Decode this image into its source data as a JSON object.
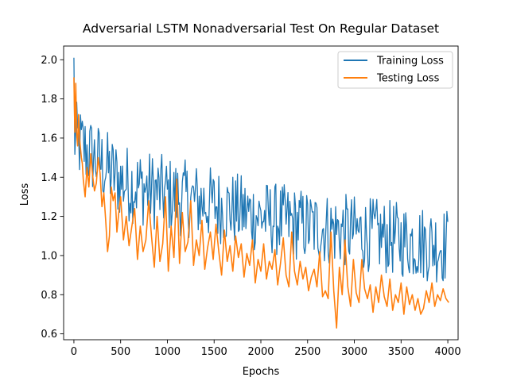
{
  "chart_data": {
    "type": "line",
    "title": "Adversarial LSTM Nonadversarial Test On Regular Dataset",
    "xlabel": "Epochs",
    "ylabel": "Loss",
    "xlim": [
      -110,
      4110
    ],
    "ylim": [
      0.57,
      2.07
    ],
    "xticks": [
      0,
      500,
      1000,
      1500,
      2000,
      2500,
      3000,
      3500,
      4000
    ],
    "yticks": [
      0.6,
      0.8,
      1.0,
      1.2,
      1.4,
      1.6,
      1.8,
      2.0
    ],
    "ytick_labels": [
      "0.6",
      "0.8",
      "1.0",
      "1.2",
      "1.4",
      "1.6",
      "1.8",
      "2.0"
    ],
    "grid": false,
    "legend_position": "upper right",
    "series": [
      {
        "name": "Training Loss",
        "color": "#1f77b4",
        "style": "noisy-band",
        "x_range": [
          0,
          4000
        ],
        "step": 10,
        "start_value": 2.01,
        "trend": [
          [
            0,
            1.6
          ],
          [
            100,
            1.55
          ],
          [
            500,
            1.38
          ],
          [
            1000,
            1.31
          ],
          [
            1500,
            1.26
          ],
          [
            2000,
            1.2
          ],
          [
            2500,
            1.15
          ],
          [
            3000,
            1.12
          ],
          [
            3500,
            1.08
          ],
          [
            4000,
            1.05
          ]
        ],
        "amplitude": [
          [
            0,
            0.2
          ],
          [
            1000,
            0.2
          ],
          [
            2000,
            0.19
          ],
          [
            3000,
            0.19
          ],
          [
            4000,
            0.2
          ]
        ]
      },
      {
        "name": "Testing Loss",
        "color": "#ff7f0e",
        "style": "line",
        "x": [
          0,
          10,
          20,
          30,
          40,
          50,
          60,
          70,
          80,
          90,
          100,
          120,
          140,
          160,
          180,
          200,
          220,
          240,
          260,
          280,
          300,
          320,
          340,
          360,
          380,
          400,
          420,
          440,
          460,
          480,
          500,
          530,
          560,
          590,
          620,
          650,
          680,
          710,
          740,
          770,
          800,
          830,
          860,
          890,
          920,
          950,
          980,
          1010,
          1040,
          1070,
          1100,
          1130,
          1160,
          1190,
          1220,
          1250,
          1280,
          1310,
          1340,
          1370,
          1400,
          1430,
          1460,
          1490,
          1520,
          1550,
          1580,
          1610,
          1640,
          1670,
          1700,
          1730,
          1760,
          1790,
          1820,
          1850,
          1880,
          1910,
          1940,
          1970,
          2000,
          2030,
          2060,
          2090,
          2120,
          2150,
          2180,
          2210,
          2240,
          2270,
          2300,
          2330,
          2360,
          2390,
          2420,
          2450,
          2480,
          2510,
          2540,
          2570,
          2600,
          2630,
          2660,
          2690,
          2720,
          2750,
          2780,
          2810,
          2840,
          2870,
          2900,
          2930,
          2960,
          2990,
          3020,
          3050,
          3080,
          3110,
          3140,
          3170,
          3200,
          3230,
          3260,
          3290,
          3320,
          3350,
          3380,
          3410,
          3440,
          3470,
          3500,
          3530,
          3560,
          3590,
          3620,
          3650,
          3680,
          3710,
          3740,
          3770,
          3800,
          3830,
          3860,
          3890,
          3920,
          3950,
          3980,
          4010
        ],
        "y": [
          1.91,
          1.63,
          1.88,
          1.62,
          1.56,
          1.72,
          1.6,
          1.55,
          1.5,
          1.47,
          1.39,
          1.3,
          1.45,
          1.35,
          1.52,
          1.41,
          1.33,
          1.37,
          1.5,
          1.42,
          1.25,
          1.32,
          1.18,
          1.02,
          1.1,
          1.35,
          1.28,
          1.32,
          1.12,
          1.22,
          1.3,
          1.08,
          1.2,
          1.05,
          1.15,
          1.24,
          0.98,
          1.15,
          1.02,
          1.08,
          1.28,
          1.1,
          0.94,
          1.2,
          0.97,
          1.06,
          1.3,
          0.92,
          1.15,
          0.99,
          1.39,
          0.96,
          1.22,
          1.02,
          1.07,
          1.28,
          0.95,
          1.08,
          1.0,
          1.18,
          0.93,
          1.04,
          1.12,
          0.98,
          1.16,
          1.02,
          0.9,
          1.13,
          0.97,
          1.05,
          0.92,
          1.1,
          0.99,
          1.06,
          0.89,
          1.01,
          0.95,
          1.08,
          0.86,
          0.98,
          0.92,
          1.06,
          0.88,
          0.97,
          0.93,
          1.03,
          0.85,
          0.96,
          1.09,
          0.9,
          0.84,
          1.12,
          0.92,
          0.85,
          0.97,
          0.88,
          0.94,
          0.82,
          0.89,
          0.93,
          0.84,
          1.02,
          0.79,
          0.82,
          0.78,
          1.12,
          0.82,
          0.63,
          0.94,
          0.8,
          1.08,
          0.84,
          0.74,
          0.98,
          0.81,
          0.76,
          0.98,
          0.83,
          0.78,
          0.85,
          0.71,
          0.84,
          0.76,
          0.9,
          0.79,
          0.74,
          0.88,
          0.72,
          0.8,
          0.76,
          0.86,
          0.7,
          0.84,
          0.75,
          0.8,
          0.72,
          0.78,
          0.7,
          0.73,
          0.82,
          0.76,
          0.86,
          0.74,
          0.8,
          0.77,
          0.83,
          0.78,
          0.76
        ]
      }
    ]
  }
}
